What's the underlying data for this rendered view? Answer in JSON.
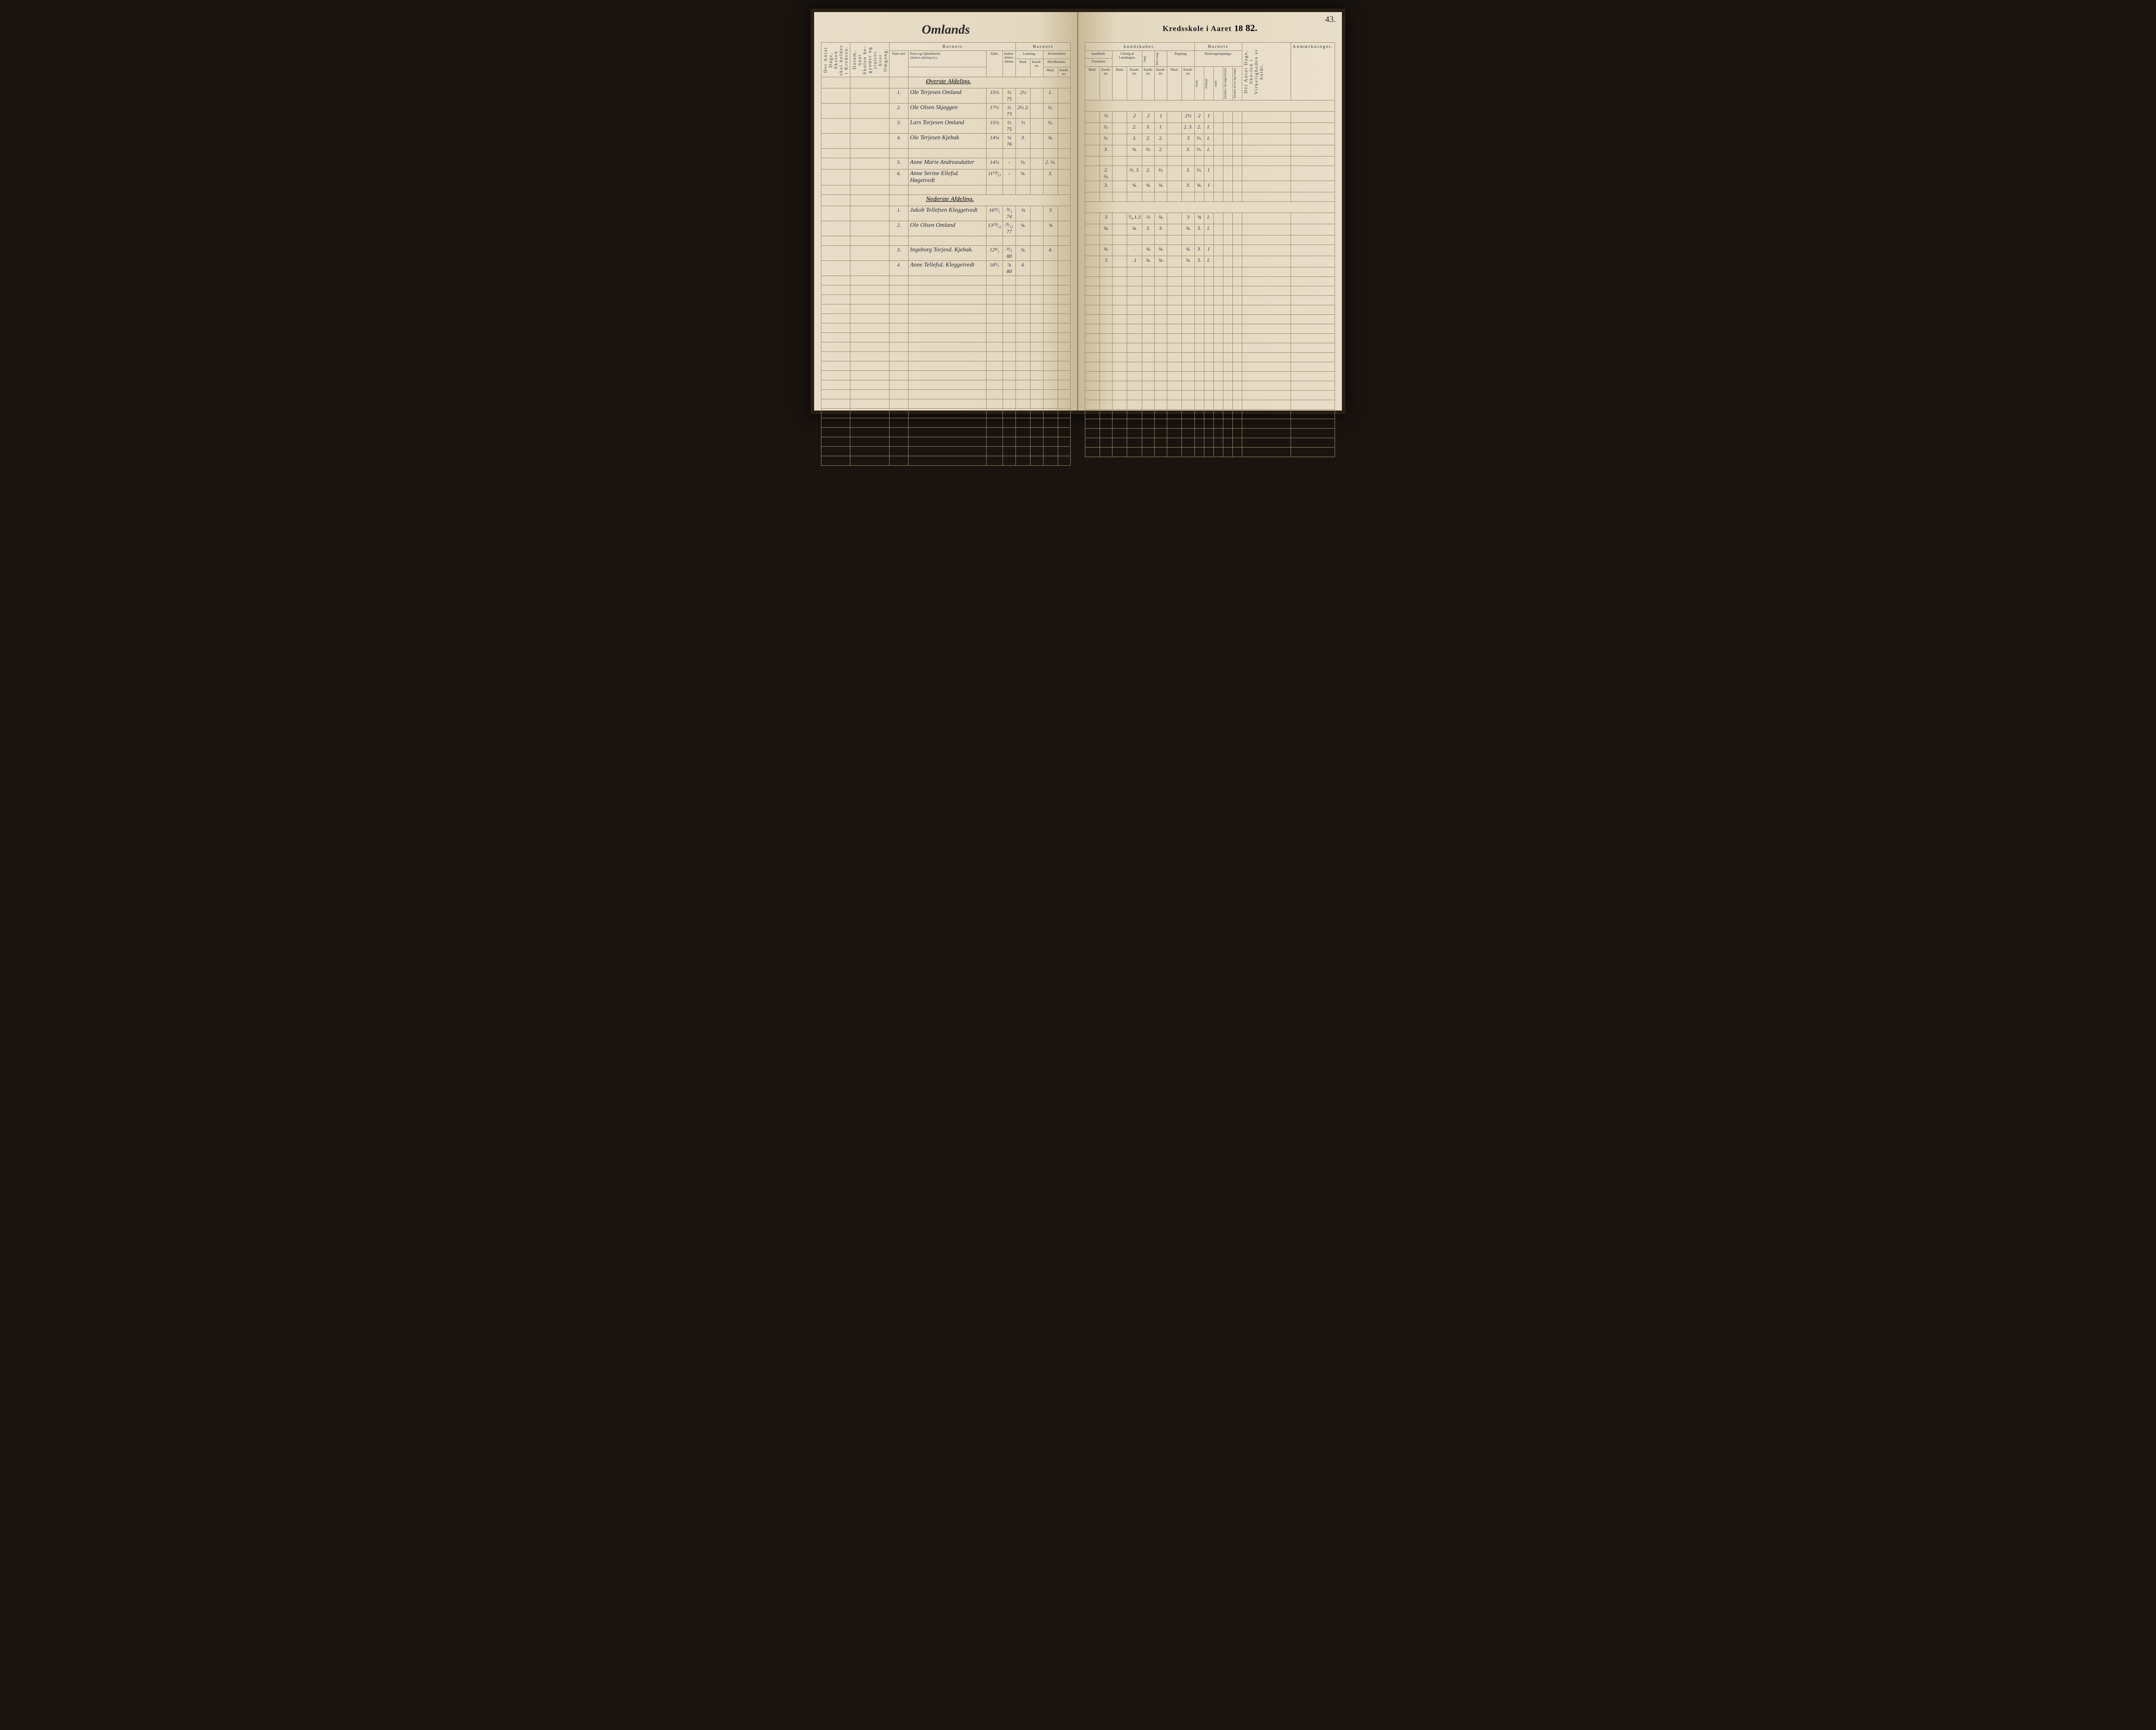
{
  "pageNumber": "43.",
  "titleLeft": "Omlands",
  "titleRightPrefix": "Kredsskole i Aaret",
  "titleYearPrint": "18",
  "titleYearHand": "82.",
  "headers": {
    "barnets": "Barnets",
    "barnets2": "Barnets",
    "barnets3": "Barnets",
    "kundskaber": "kundskaber.",
    "laesning": "Læsning.",
    "kristendoms": "Kristendoms",
    "bibelhistorie": "Bibelhistorie.",
    "troeslaere": "Troeslære.",
    "udvalg": "Udvalg af Læsebogen.",
    "sang": "Sang.",
    "skrivning": "Skriv-ning.",
    "regning": "Regning.",
    "skolesogning": "Skolesogningsdage.",
    "anmerk": "Anmærkninger.",
    "navn": "Navn og Opholdssted.",
    "navnSub": "(Anføres afdelingsvis.)",
    "nummer": "Num-mer.",
    "alder": "Alder.",
    "indtr": "Indtræ-delses-datum.",
    "maal": "Maal.",
    "karakter": "Karak-ter.",
    "overt": "Overt.",
    "forbudt": "Forbudt.",
    "mote": "møte.",
    "forsomt1": "forsømt i for-lagen Kreds.",
    "forsomt2": "forsømt af lov-lig Grund.",
    "vertA": "Det Antal Dage, Skolen skal holdes i Kredsen.",
    "vertB": "Datum, naar Skolen be-gynder og slutter hver Omgang.",
    "vertC": "Det Antal Dage, Sko-len i Virkeligheden er holdt."
  },
  "sectionUpper": "Øverste Afdeling.",
  "sectionLower": "Nederste Afdeling.",
  "rowsUpper": [
    {
      "n": "1.",
      "name": "Ole Terjesen Omland",
      "alder": "15⅔",
      "ind": "⅔ 75",
      "l1": "2½",
      "l2": "",
      "k1": "1.",
      "k2": "",
      "t1": "",
      "t2": "½",
      "u1": "",
      "u2": "2",
      "s": "2",
      "sk": "1",
      "r1": "",
      "r2": "2½",
      "o": "2",
      "f": "1",
      "m": "",
      "g1": "",
      "g2": ""
    },
    {
      "n": "2.",
      "name": "Ole Olsen Skjeggen",
      "alder": "17½",
      "ind": "½ 73",
      "l1": "2½ 2.",
      "l2": "",
      "k1": "½.",
      "k2": "",
      "t1": "",
      "t2": "½.",
      "u1": "",
      "u2": "2.",
      "s": "3.",
      "sk": "1.",
      "r1": "",
      "r2": "2. 3.",
      "o": "2.",
      "f": "1.",
      "m": "",
      "g1": "",
      "g2": ""
    },
    {
      "n": "3.",
      "name": "Lars Torjesen Omland",
      "alder": "15⅔",
      "ind": "⅔ 75",
      "l1": "⅔",
      "l2": "",
      "k1": "⅔.",
      "k2": "",
      "t1": "",
      "t2": "⅔.",
      "u1": "",
      "u2": "3.",
      "s": "2.",
      "sk": "2.",
      "r1": "",
      "r2": "3",
      "o": "⅔.",
      "f": "1.",
      "m": "",
      "g1": "",
      "g2": ""
    },
    {
      "n": "4.",
      "name": "Ole Terjesen Kjebak",
      "alder": "14¼",
      "ind": "¼ 76",
      "l1": "3.",
      "l2": "",
      "k1": "¾.",
      "k2": "",
      "t1": "",
      "t2": "3.",
      "u1": "",
      "u2": "¾.",
      "s": "⅔.",
      "sk": "2.",
      "r1": "",
      "r2": "3.",
      "o": "⅔.",
      "f": "1.",
      "m": "",
      "g1": "",
      "g2": ""
    },
    {
      "n": "5.",
      "name": "Anne Marie Andreasdatter",
      "alder": "14⅔",
      "ind": "–",
      "l1": "⅔.",
      "l2": "",
      "k1": "2. ⅔.",
      "k2": "",
      "t1": "",
      "t2": "2. ⅔.",
      "u1": "",
      "u2": "⅔. 3.",
      "s": "2.",
      "sk": "⅔.",
      "r1": "",
      "r2": "3.",
      "o": "⅔.",
      "f": "1",
      "m": "",
      "g1": "",
      "g2": ""
    },
    {
      "n": "6.",
      "name": "Anne Serine Ellefsd. Høgetvedt",
      "alder": "11²⁰⁄₁₂",
      "ind": "–",
      "l1": "¾.",
      "l2": "",
      "k1": "3.",
      "k2": "",
      "t1": "",
      "t2": "3.",
      "u1": "",
      "u2": "¾.",
      "s": "¾.",
      "sk": "¾.",
      "r1": "",
      "r2": "3.",
      "o": "¾.",
      "f": "1",
      "m": "",
      "g1": "",
      "g2": ""
    }
  ],
  "rowsLower": [
    {
      "n": "1.",
      "name": "Jakob Tellefsen Kleggetvedt",
      "alder": "16²²⁄₁",
      "ind": "²¹⁄₁ 74",
      "l1": "¾",
      "l2": "",
      "k1": "3",
      "k2": "",
      "t1": "",
      "t2": "3",
      "u1": "",
      "u2": "³⁄₄.1.3",
      "s": "⅔",
      "sk": "¾.",
      "r1": "",
      "r2": "3",
      "o": "¾",
      "f": "1.",
      "m": "",
      "g1": "",
      "g2": ""
    },
    {
      "n": "2.",
      "name": "Ole Olsen Omland",
      "alder": "13²⁰⁄₁₂",
      "ind": "²⁵⁄₁₂ 77",
      "l1": "¾.",
      "l2": "",
      "k1": "¾",
      "k2": "",
      "t1": "",
      "t2": "¾.",
      "u1": "",
      "u2": "¾.",
      "s": "3.",
      "sk": "3.",
      "r1": "",
      "r2": "¾.",
      "o": "3.",
      "f": "1.",
      "m": "",
      "g1": "",
      "g2": ""
    },
    {
      "n": "3.",
      "name": "Ingeborg Torjesd. Kjebak.",
      "alder": "12⁴⁄₁",
      "ind": "²⁵⁄₃ 80",
      "l1": "¾.",
      "l2": "",
      "k1": "4.",
      "k2": "",
      "t1": "",
      "t2": "¾.",
      "u1": "",
      "u2": ".",
      "s": "¾.",
      "sk": "¾.",
      "r1": "",
      "r2": "¾.",
      "o": "3.",
      "f": "1",
      "m": "",
      "g1": "",
      "g2": ""
    },
    {
      "n": "4.",
      "name": "Anne Tellefsd. Kleggetvedt",
      "alder": "10⁵⁄₇",
      "ind": "⅞ 80",
      "l1": "4.",
      "l2": "",
      "k1": "",
      "k2": "",
      "t1": "",
      "t2": "3",
      "u1": "",
      "u2": ".1",
      "s": "¾.",
      "sk": "¾.",
      "r1": "",
      "r2": "¾.",
      "o": "3.",
      "f": "1.",
      "m": "",
      "g1": "",
      "g2": ""
    }
  ]
}
